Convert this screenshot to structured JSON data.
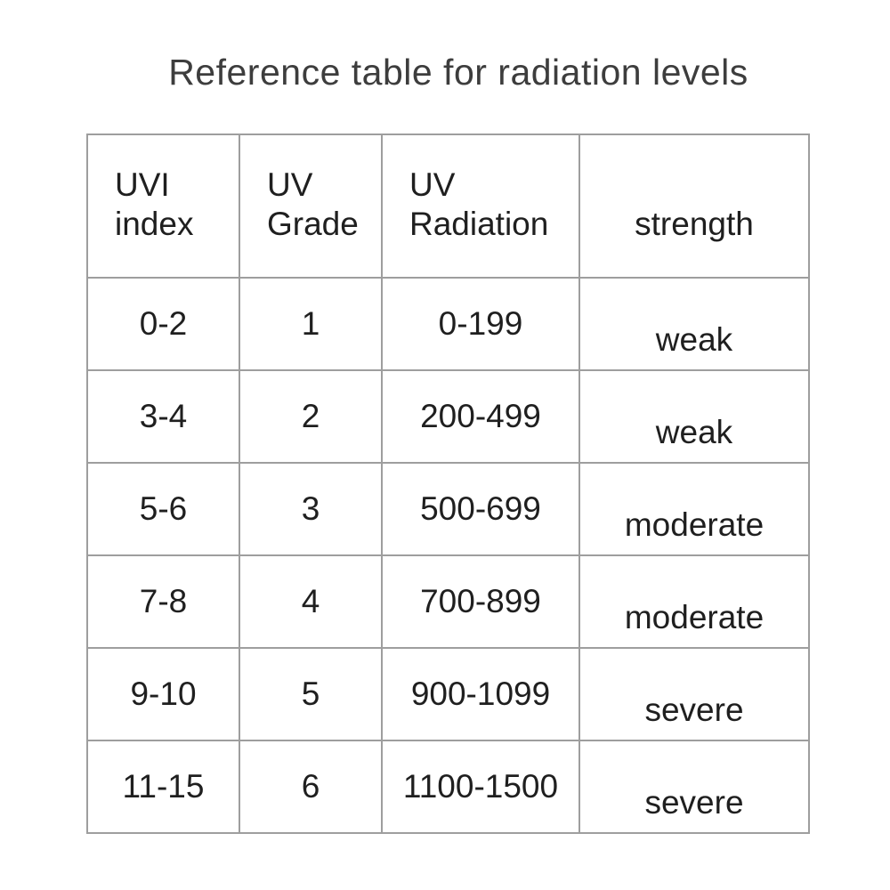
{
  "title": "Reference table for radiation levels",
  "colors": {
    "background": "#ffffff",
    "table_border": "#9e9e9e",
    "table_text": "#1f1f1f",
    "title_text": "#3d3d3d"
  },
  "table": {
    "headers": [
      {
        "line1": "UVI",
        "line2": "index"
      },
      {
        "line1": "UV",
        "line2": "Grade"
      },
      {
        "line1": "UV",
        "line2": "Radiation"
      },
      {
        "line1": "",
        "line2": "strength"
      }
    ],
    "rows": [
      {
        "uvi_index": "0-2",
        "uv_grade": "1",
        "uv_radiation": "0-199",
        "strength": "weak"
      },
      {
        "uvi_index": "3-4",
        "uv_grade": "2",
        "uv_radiation": "200-499",
        "strength": "weak"
      },
      {
        "uvi_index": "5-6",
        "uv_grade": "3",
        "uv_radiation": "500-699",
        "strength": "moderate"
      },
      {
        "uvi_index": "7-8",
        "uv_grade": "4",
        "uv_radiation": "700-899",
        "strength": "moderate"
      },
      {
        "uvi_index": "9-10",
        "uv_grade": "5",
        "uv_radiation": "900-1099",
        "strength": "severe"
      },
      {
        "uvi_index": "11-15",
        "uv_grade": "6",
        "uv_radiation": "1100-1500",
        "strength": "severe"
      }
    ]
  },
  "chart_data": {
    "type": "table",
    "title": "Reference table for radiation levels",
    "columns": [
      "UVI index",
      "UV Grade",
      "UV Radiation",
      "strength"
    ],
    "rows": [
      [
        "0-2",
        "1",
        "0-199",
        "weak"
      ],
      [
        "3-4",
        "2",
        "200-499",
        "weak"
      ],
      [
        "5-6",
        "3",
        "500-699",
        "moderate"
      ],
      [
        "7-8",
        "4",
        "700-899",
        "moderate"
      ],
      [
        "9-10",
        "5",
        "900-1099",
        "severe"
      ],
      [
        "11-15",
        "6",
        "1100-1500",
        "severe"
      ]
    ]
  }
}
